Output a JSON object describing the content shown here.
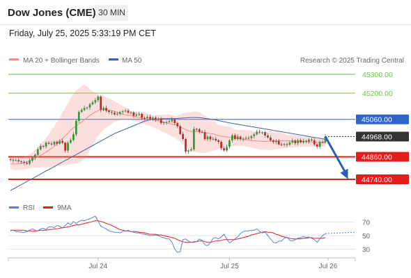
{
  "header": {
    "title": "Dow Jones (CME)",
    "timeframe": "30 MIN"
  },
  "datetime": "Friday, July 25, 2025 5:33:19 PM CET",
  "legend": {
    "ma20_label": "MA 20 + Bollinger Bands",
    "ma50_label": "MA 50",
    "copyright": "Research © 2025 Trading Central",
    "rsi_label": "RSI",
    "ma9_label": "9MA"
  },
  "colors": {
    "bullish": "#2e9a3a",
    "bearish": "#c62828",
    "ma20": "#f28b82",
    "ma50": "#3f5fa8",
    "resistance": "#6cbf4a",
    "support": "#e31c1c",
    "pivot": "#2f64c8",
    "current": "#333333",
    "rsi": "#5b7fd6",
    "ma9": "#e31c1c"
  },
  "chart_data": [
    {
      "type": "candlestick",
      "title": "Dow Jones (CME)",
      "timeframe": "30 MIN",
      "xlabel": "",
      "ylabel": "",
      "x_ticks": [
        "Jul 24",
        "Jul 25",
        "Jul 26"
      ],
      "x_tick_index": [
        32,
        80,
        116
      ],
      "ylim": [
        44680,
        45350
      ],
      "grid": false,
      "legend_position": "top-left",
      "levels": [
        {
          "name": "resistance",
          "value": 45300.0,
          "label": "45300.00"
        },
        {
          "name": "resistance",
          "value": 45200.0,
          "label": "45200.00"
        },
        {
          "name": "pivot",
          "value": 45060.0,
          "label": "45060.00"
        },
        {
          "name": "current",
          "value": 44968.0,
          "label": "44968.00"
        },
        {
          "name": "support",
          "value": 44860.0,
          "label": "44860.00"
        },
        {
          "name": "support",
          "value": 44740.0,
          "label": "44740.00"
        }
      ],
      "forecast": {
        "from_index": 115,
        "from_value": 44968,
        "to_index": 122,
        "to_value": 44745
      },
      "close": [
        44844,
        44841,
        44842,
        44836,
        44833,
        44828,
        44823,
        44840,
        44855,
        44870,
        44900,
        44918,
        44915,
        44935,
        44930,
        44927,
        44940,
        44930,
        44945,
        44935,
        44893,
        44935,
        44950,
        44980,
        45052,
        45100,
        45110,
        45121,
        45123,
        45140,
        45150,
        45162,
        45181,
        45110,
        45121,
        45106,
        45099,
        45095,
        45086,
        45089,
        45099,
        45103,
        45106,
        45096,
        45097,
        45080,
        45085,
        45089,
        45068,
        45066,
        45073,
        45062,
        45069,
        45059,
        45061,
        45040,
        45044,
        45045,
        45050,
        45060,
        45040,
        45023,
        44982,
        44955,
        44888,
        44894,
        44900,
        45009,
        45007,
        44994,
        44992,
        44954,
        44968,
        44953,
        44956,
        44948,
        44940,
        44906,
        44894,
        44913,
        44948,
        44975,
        44955,
        44968,
        44954,
        44957,
        44961,
        44960,
        44970,
        44980,
        44994,
        44990,
        44991,
        44974,
        44963,
        44948,
        44939,
        44946,
        44926,
        44925,
        44928,
        44925,
        44936,
        44947,
        44933,
        44949,
        44937,
        44945,
        44942,
        44952,
        44948,
        44926,
        44914,
        44940,
        44937,
        44968
      ],
      "series": [
        {
          "name": "MA 20 + Bollinger Bands",
          "role": "upper",
          "values": [
            44856,
            44854,
            44853,
            44853,
            44855,
            44860,
            44866,
            44874,
            44884,
            44898,
            44913,
            44926,
            44944,
            44961,
            44981,
            45003,
            45025,
            45048,
            45071,
            45097,
            45121,
            45146,
            45173,
            45196,
            45213,
            45226,
            45237,
            45247,
            45235,
            45220,
            45209,
            45204,
            45194,
            45188,
            45187,
            45180,
            45174,
            45166,
            45157,
            45148,
            45139,
            45131,
            45125,
            45115,
            45107,
            45098,
            45096,
            45095,
            45097,
            45098,
            45093,
            45088,
            45084,
            45084,
            45084,
            45085,
            45086,
            45086,
            45087,
            45084,
            45076,
            45080,
            45085,
            45093,
            45094,
            45098,
            45097,
            45103,
            45101,
            45099,
            45089,
            45081,
            45073,
            45061,
            45055,
            45044,
            45031,
            45028,
            45025,
            45022,
            45020,
            45014,
            45006,
            45004,
            45003,
            45004,
            45003,
            45002,
            45000,
            44996,
            44996,
            44994,
            44992,
            44995,
            44995,
            44997,
            44994,
            44994,
            44990,
            44988,
            44986,
            44979,
            44977,
            44976,
            44976,
            44973,
            44970,
            44968,
            44967,
            44967,
            44962,
            44963,
            44958,
            44956,
            44955,
            44959
          ]
        },
        {
          "name": "MA 20 + Bollinger Bands",
          "role": "middle",
          "values": [
            44823,
            44822,
            44822,
            44823,
            44825,
            44829,
            44833,
            44839,
            44846,
            44853,
            44860,
            44868,
            44877,
            44885,
            44895,
            44905,
            44916,
            44930,
            44943,
            44957,
            44971,
            44986,
            45003,
            45015,
            45024,
            45035,
            45046,
            45057,
            45069,
            45080,
            45090,
            45099,
            45106,
            45111,
            45113,
            45110,
            45109,
            45107,
            45102,
            45097,
            45091,
            45087,
            45084,
            45082,
            45080,
            45077,
            45073,
            45069,
            45065,
            45063,
            45061,
            45059,
            45058,
            45055,
            45051,
            45048,
            45044,
            45041,
            45037,
            45035,
            45031,
            45028,
            45020,
            45012,
            45006,
            44999,
            44995,
            44995,
            44995,
            44993,
            44990,
            44988,
            44987,
            44984,
            44983,
            44977,
            44973,
            44970,
            44968,
            44967,
            44963,
            44964,
            44962,
            44959,
            44957,
            44953,
            44951,
            44949,
            44947,
            44946,
            44945,
            44944,
            44942,
            44942,
            44943,
            44944,
            44946,
            44945,
            44946,
            44946,
            44945,
            44946,
            44945,
            44944,
            44943,
            44942,
            44942,
            44941,
            44941,
            44940,
            44940,
            44939,
            44938,
            44937,
            44936,
            44936
          ]
        },
        {
          "name": "MA 20 + Bollinger Bands",
          "role": "lower",
          "values": [
            44793,
            44791,
            44789,
            44789,
            44790,
            44793,
            44796,
            44798,
            44801,
            44803,
            44803,
            44803,
            44803,
            44803,
            44804,
            44806,
            44807,
            44810,
            44813,
            44815,
            44816,
            44817,
            44820,
            44823,
            44825,
            44828,
            44836,
            44848,
            44870,
            44896,
            44921,
            44946,
            44972,
            44990,
            45004,
            45016,
            45027,
            45035,
            45046,
            45052,
            45056,
            45059,
            45060,
            45058,
            45055,
            45050,
            45049,
            45045,
            45038,
            45033,
            45029,
            45024,
            45019,
            45013,
            45006,
            44998,
            44992,
            44985,
            44977,
            44970,
            44962,
            44952,
            44941,
            44925,
            44914,
            44902,
            44891,
            44885,
            44884,
            44881,
            44881,
            44882,
            44885,
            44888,
            44891,
            44896,
            44902,
            44906,
            44911,
            44914,
            44916,
            44916,
            44918,
            44918,
            44918,
            44917,
            44914,
            44912,
            44910,
            44906,
            44903,
            44898,
            44898,
            44897,
            44896,
            44896,
            44898,
            44901,
            44902,
            44904,
            44906,
            44907,
            44910,
            44910,
            44911,
            44911,
            44912,
            44914,
            44915,
            44914,
            44915,
            44915,
            44914,
            44915,
            44915,
            44917
          ]
        },
        {
          "name": "MA 50",
          "values": [
            44680,
            44688,
            44696,
            44704,
            44712,
            44720,
            44728,
            44736,
            44744,
            44752,
            44760,
            44768,
            44776,
            44784,
            44792,
            44800,
            44808,
            44816,
            44824,
            44832,
            44840,
            44848,
            44856,
            44864,
            44872,
            44880,
            44888,
            44896,
            44904,
            44912,
            44920,
            44928,
            44936,
            44944,
            44952,
            44960,
            44968,
            44976,
            44984,
            44990,
            44996,
            45002,
            45008,
            45014,
            45020,
            45026,
            45032,
            45038,
            45044,
            45050,
            45055,
            45058,
            45060,
            45061,
            45062,
            45063,
            45064,
            45064,
            45064,
            45064,
            45064,
            45065,
            45066,
            45067,
            45068,
            45069,
            45070,
            45070,
            45070,
            45069,
            45067,
            45065,
            45063,
            45061,
            45059,
            45056,
            45053,
            45050,
            45047,
            45044,
            45041,
            45039,
            45036,
            45034,
            45031,
            45029,
            45026,
            45024,
            45021,
            45019,
            45016,
            45014,
            45011,
            45009,
            45006,
            45004,
            45001,
            44999,
            44996,
            44994,
            44991,
            44989,
            44986,
            44984,
            44981,
            44979,
            44976,
            44974,
            44971,
            44969,
            44966,
            44964,
            44961,
            44959,
            44956,
            44954
          ]
        }
      ]
    },
    {
      "type": "line",
      "title": "RSI",
      "ylim": [
        20,
        80
      ],
      "y_ticks": [
        70,
        50,
        30
      ],
      "series": [
        {
          "name": "RSI",
          "values": [
            57,
            58,
            56,
            56,
            55,
            55,
            56,
            58,
            60,
            58,
            57,
            60,
            61,
            59,
            63,
            63,
            62,
            65,
            64,
            61,
            65,
            69,
            66,
            71,
            68,
            71,
            73,
            72,
            74,
            75,
            77,
            79,
            72,
            64,
            62,
            60,
            57,
            56,
            55,
            55,
            54,
            56,
            57,
            58,
            56,
            55,
            54,
            54,
            53,
            52,
            51,
            50,
            50,
            51,
            50,
            48,
            47,
            45,
            45,
            40,
            30,
            25,
            26,
            44,
            45,
            42,
            40,
            40,
            41,
            45,
            43,
            36,
            35,
            39,
            46,
            47,
            45,
            48,
            52,
            45,
            39,
            42,
            45,
            48,
            53,
            56,
            57,
            57,
            58,
            58,
            60,
            56,
            54,
            55,
            50,
            45,
            40,
            39,
            42,
            42,
            46,
            48,
            43,
            42,
            44,
            46,
            47,
            49,
            47,
            48,
            46,
            44,
            40,
            45,
            50,
            53
          ]
        },
        {
          "name": "9MA",
          "values": [
            58,
            58,
            58,
            58,
            58,
            58,
            57,
            57,
            57,
            57,
            57,
            58,
            58,
            58,
            59,
            59,
            60,
            60,
            61,
            62,
            62,
            63,
            64,
            65,
            66,
            66,
            67,
            68,
            69,
            70,
            71,
            72,
            72,
            71,
            70,
            68,
            67,
            65,
            63,
            61,
            59,
            58,
            57,
            57,
            56,
            56,
            56,
            55,
            55,
            54,
            53,
            52,
            52,
            52,
            51,
            51,
            50,
            49,
            48,
            47,
            46,
            44,
            42,
            41,
            40,
            40,
            40,
            41,
            41,
            42,
            42,
            41,
            40,
            40,
            41,
            42,
            42,
            43,
            44,
            44,
            44,
            44,
            44,
            45,
            46,
            47,
            48,
            49,
            51,
            52,
            53,
            54,
            55,
            56,
            55,
            55,
            54,
            52,
            51,
            49,
            48,
            47,
            46,
            45,
            45,
            45,
            45,
            46,
            46,
            47,
            47,
            46,
            46,
            46,
            46,
            47
          ]
        }
      ]
    }
  ]
}
